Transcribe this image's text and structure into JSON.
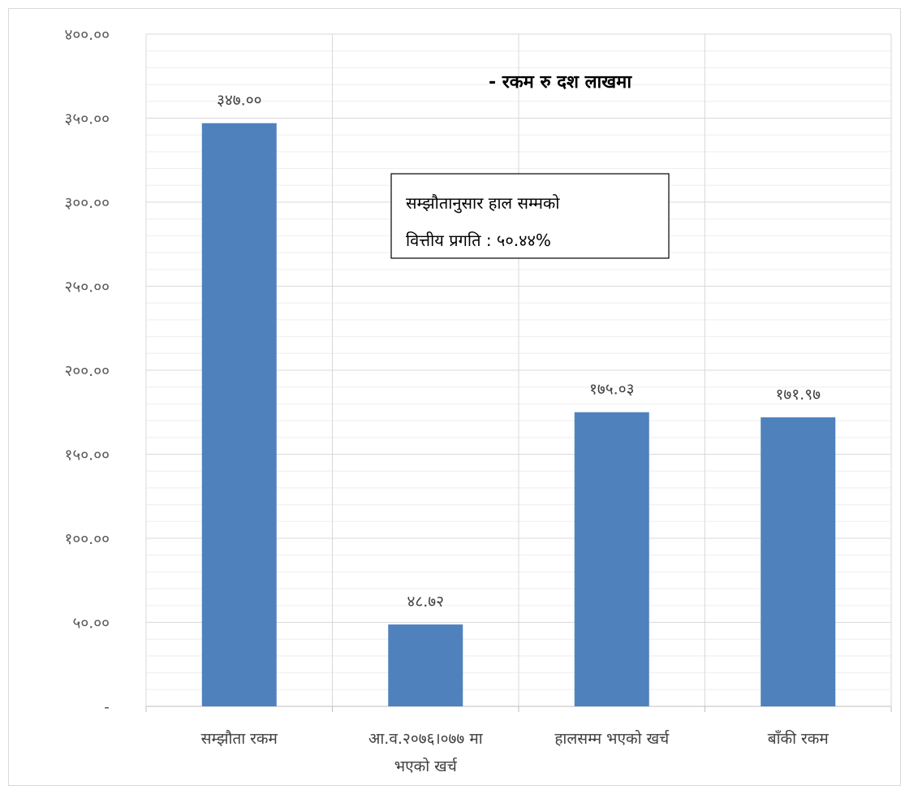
{
  "chart_data": {
    "type": "bar",
    "title": "",
    "subtitle": "- रकम रु दश लाखमा",
    "categories": [
      [
        "सम्झौता रकम"
      ],
      [
        "आ.व.२०७६।०७७ मा",
        "भएको खर्च"
      ],
      [
        "हालसम्म भएको खर्च"
      ],
      [
        "बाँकी रकम"
      ]
    ],
    "values": [
      347.0,
      48.72,
      175.03,
      171.97
    ],
    "data_labels": [
      "३४७.००",
      "४८.७२",
      "१७५.०३",
      "१७१.९७"
    ],
    "ylim": [
      0,
      400
    ],
    "yticks": [
      0,
      50,
      100,
      150,
      200,
      250,
      300,
      350,
      400
    ],
    "ytick_labels": [
      "-",
      "५०.००",
      "१००.००",
      "१५०.००",
      "२००.००",
      "२५०.००",
      "३००.००",
      "३५०.००",
      "४००.००"
    ],
    "xlabel": "",
    "ylabel": "",
    "grid": true,
    "minor_grid": true,
    "legend": "none",
    "annotation": [
      "सम्झौतानुसार हाल सम्मको",
      "वित्तीय प्रगति : ५०.४४%"
    ],
    "colors": {
      "bar": "#4f81bd",
      "grid_major": "#d9d9d9",
      "grid_minor": "#eeeeee",
      "axis": "#bfbfbf"
    }
  }
}
